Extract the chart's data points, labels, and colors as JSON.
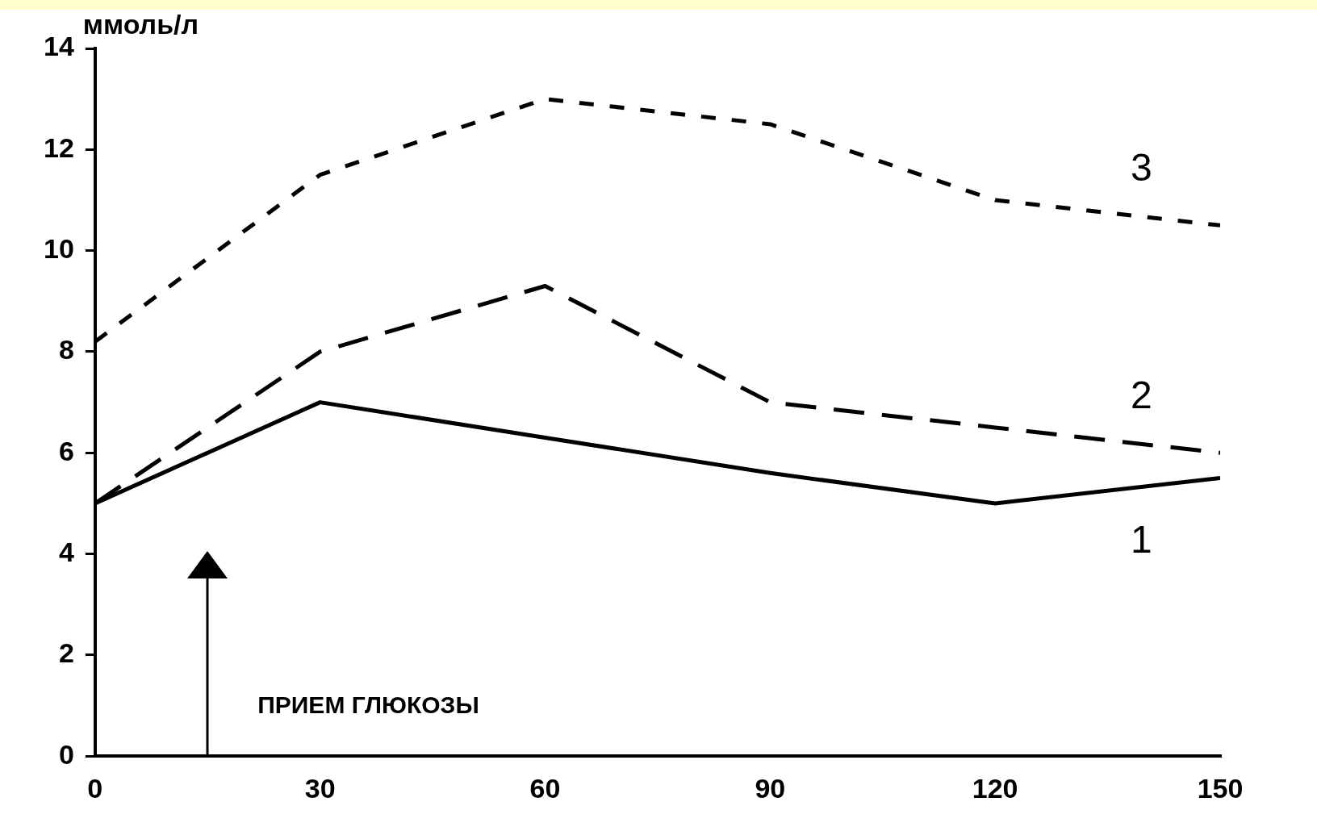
{
  "chart_data": {
    "type": "line",
    "ylabel": "ммоль/л",
    "x": [
      0,
      30,
      60,
      90,
      120,
      150
    ],
    "xlim": [
      0,
      150
    ],
    "xticks": [
      0,
      30,
      60,
      90,
      120,
      150
    ],
    "ylim": [
      0,
      14
    ],
    "yticks": [
      0,
      2,
      4,
      6,
      8,
      10,
      12,
      14
    ],
    "series": [
      {
        "name": "1",
        "color": "#000000",
        "line_style": "solid",
        "values": [
          5,
          7,
          6.3,
          5.6,
          5,
          5.5
        ]
      },
      {
        "name": "2",
        "color": "#000000",
        "line_style": "dashed",
        "values": [
          5,
          8,
          9.3,
          7,
          6.5,
          6
        ]
      },
      {
        "name": "3",
        "color": "#000000",
        "line_style": "dotted",
        "values": [
          8.2,
          11.5,
          13,
          12.5,
          11,
          10.5
        ]
      }
    ],
    "annotations": [
      "ПРИЕМ ГЛЮКОЗЫ"
    ],
    "grid": false,
    "legend": false,
    "marker": "none"
  }
}
